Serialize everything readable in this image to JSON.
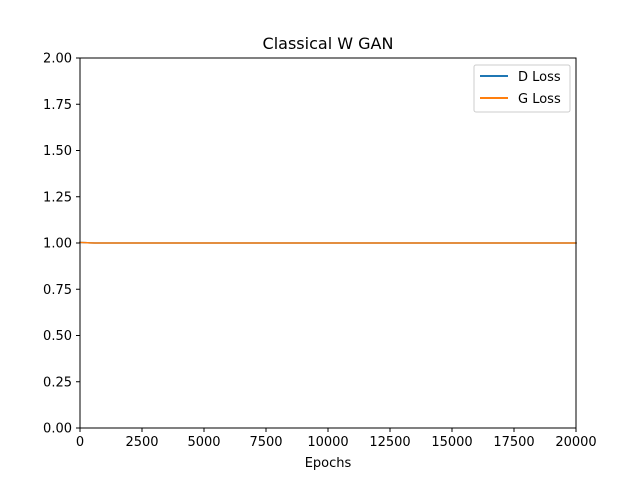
{
  "chart_data": {
    "type": "line",
    "title": "Classical W GAN",
    "xlabel": "Epochs",
    "ylabel": "",
    "xlim": [
      0,
      20000
    ],
    "ylim": [
      0.0,
      2.0
    ],
    "x_ticks": [
      "0",
      "2500",
      "5000",
      "7500",
      "10000",
      "12500",
      "15000",
      "17500",
      "20000"
    ],
    "y_ticks": [
      "0.00",
      "0.25",
      "0.50",
      "0.75",
      "1.00",
      "1.25",
      "1.50",
      "1.75",
      "2.00"
    ],
    "grid": false,
    "legend_position": "top-right",
    "series": [
      {
        "name": "D Loss",
        "color": "#1f77b4",
        "x": [
          0,
          200,
          400,
          600,
          1000,
          2500,
          5000,
          7500,
          10000,
          12500,
          15000,
          17500,
          20000
        ],
        "y": [
          1.003,
          1.002,
          1.001,
          1.0,
          1.0,
          1.0,
          1.0,
          1.0,
          1.0,
          1.0,
          1.0,
          1.0,
          1.0
        ]
      },
      {
        "name": "G Loss",
        "color": "#ff7f0e",
        "x": [
          0,
          200,
          400,
          600,
          1000,
          2500,
          5000,
          7500,
          10000,
          12500,
          15000,
          17500,
          20000
        ],
        "y": [
          1.003,
          1.002,
          1.001,
          1.0,
          1.0,
          1.0,
          1.0,
          1.0,
          1.0,
          1.0,
          1.0,
          1.0,
          1.0
        ]
      }
    ]
  }
}
